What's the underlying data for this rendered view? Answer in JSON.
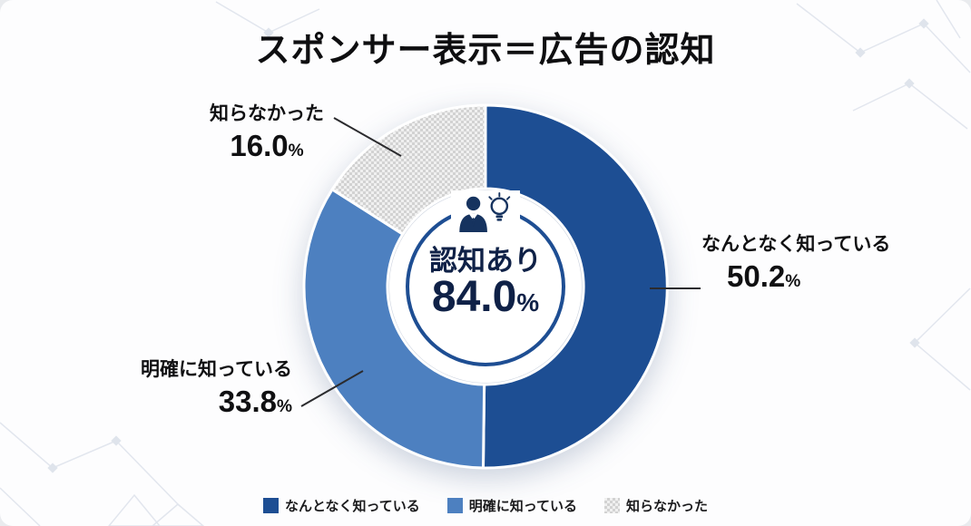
{
  "title": "スポンサー表示＝広告の認知",
  "chart_data": {
    "type": "pie",
    "donut": true,
    "title": "スポンサー表示＝広告の認知",
    "categories": [
      "なんとなく知っている",
      "明確に知っている",
      "知らなかった"
    ],
    "values": [
      50.2,
      33.8,
      16.0
    ],
    "colors": [
      "#1d4e93",
      "#4d80c0",
      "checker"
    ],
    "start_angle_deg": 0,
    "direction": "clockwise",
    "center_label": "認知あり",
    "center_value": 84.0,
    "legend_position": "bottom"
  },
  "center": {
    "label": "認知あり",
    "value": "84.0",
    "unit": "%"
  },
  "callouts": {
    "right": {
      "label": "なんとなく知っている",
      "value": "50.2",
      "unit": "%"
    },
    "bottom_left": {
      "label": "明確に知っている",
      "value": "33.8",
      "unit": "%"
    },
    "top_left": {
      "label": "知らなかった",
      "value": "16.0",
      "unit": "%"
    }
  },
  "legend": {
    "items": [
      {
        "label": "なんとなく知っている",
        "color": "#1d4e93"
      },
      {
        "label": "明確に知っている",
        "color": "#4d80c0"
      },
      {
        "label": "知らなかった",
        "color": "checker"
      }
    ]
  },
  "accent_colors": {
    "dark_blue": "#1d4e93",
    "mid_blue": "#4d80c0",
    "ring_blue": "#1e4e93",
    "gray_pattern": "#d2d2d2"
  }
}
